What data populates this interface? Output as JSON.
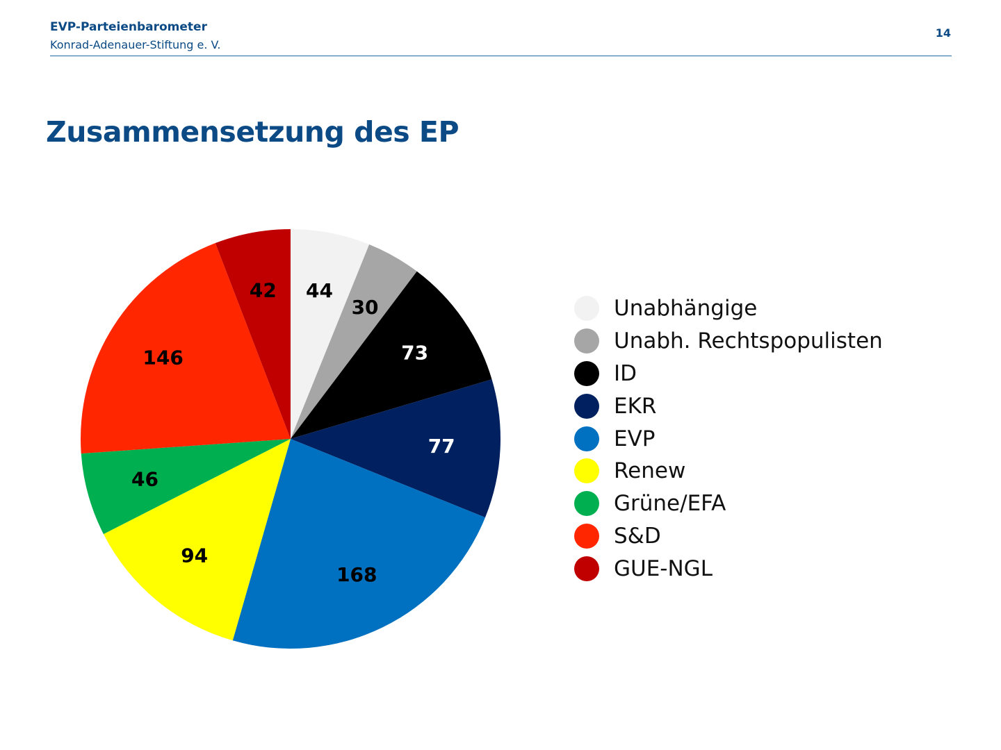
{
  "header": {
    "title": "EVP-Parteienbarometer",
    "subtitle": "Konrad-Adenauer-Stiftung e. V.",
    "page_number": "14"
  },
  "slide": {
    "title": "Zusammensetzung des EP"
  },
  "chart_data": {
    "type": "pie",
    "title": "Zusammensetzung des EP",
    "legend_position": "right",
    "slices": [
      {
        "name": "Unabhängige",
        "value": 44,
        "color": "#f2f2f2",
        "label_color": "#000000"
      },
      {
        "name": "Unabh. Rechtspopulisten",
        "value": 30,
        "color": "#a6a6a6",
        "label_color": "#000000"
      },
      {
        "name": "ID",
        "value": 73,
        "color": "#000000",
        "label_color": "#ffffff"
      },
      {
        "name": "EKR",
        "value": 77,
        "color": "#002060",
        "label_color": "#ffffff"
      },
      {
        "name": "EVP",
        "value": 168,
        "color": "#0070c0",
        "label_color": "#000000"
      },
      {
        "name": "Renew",
        "value": 94,
        "color": "#ffff00",
        "label_color": "#000000"
      },
      {
        "name": "Grüne/EFA",
        "value": 46,
        "color": "#00b050",
        "label_color": "#000000"
      },
      {
        "name": "S&D",
        "value": 146,
        "color": "#ff2600",
        "label_color": "#000000"
      },
      {
        "name": "GUE-NGL",
        "value": 42,
        "color": "#c00000",
        "label_color": "#000000"
      }
    ]
  }
}
